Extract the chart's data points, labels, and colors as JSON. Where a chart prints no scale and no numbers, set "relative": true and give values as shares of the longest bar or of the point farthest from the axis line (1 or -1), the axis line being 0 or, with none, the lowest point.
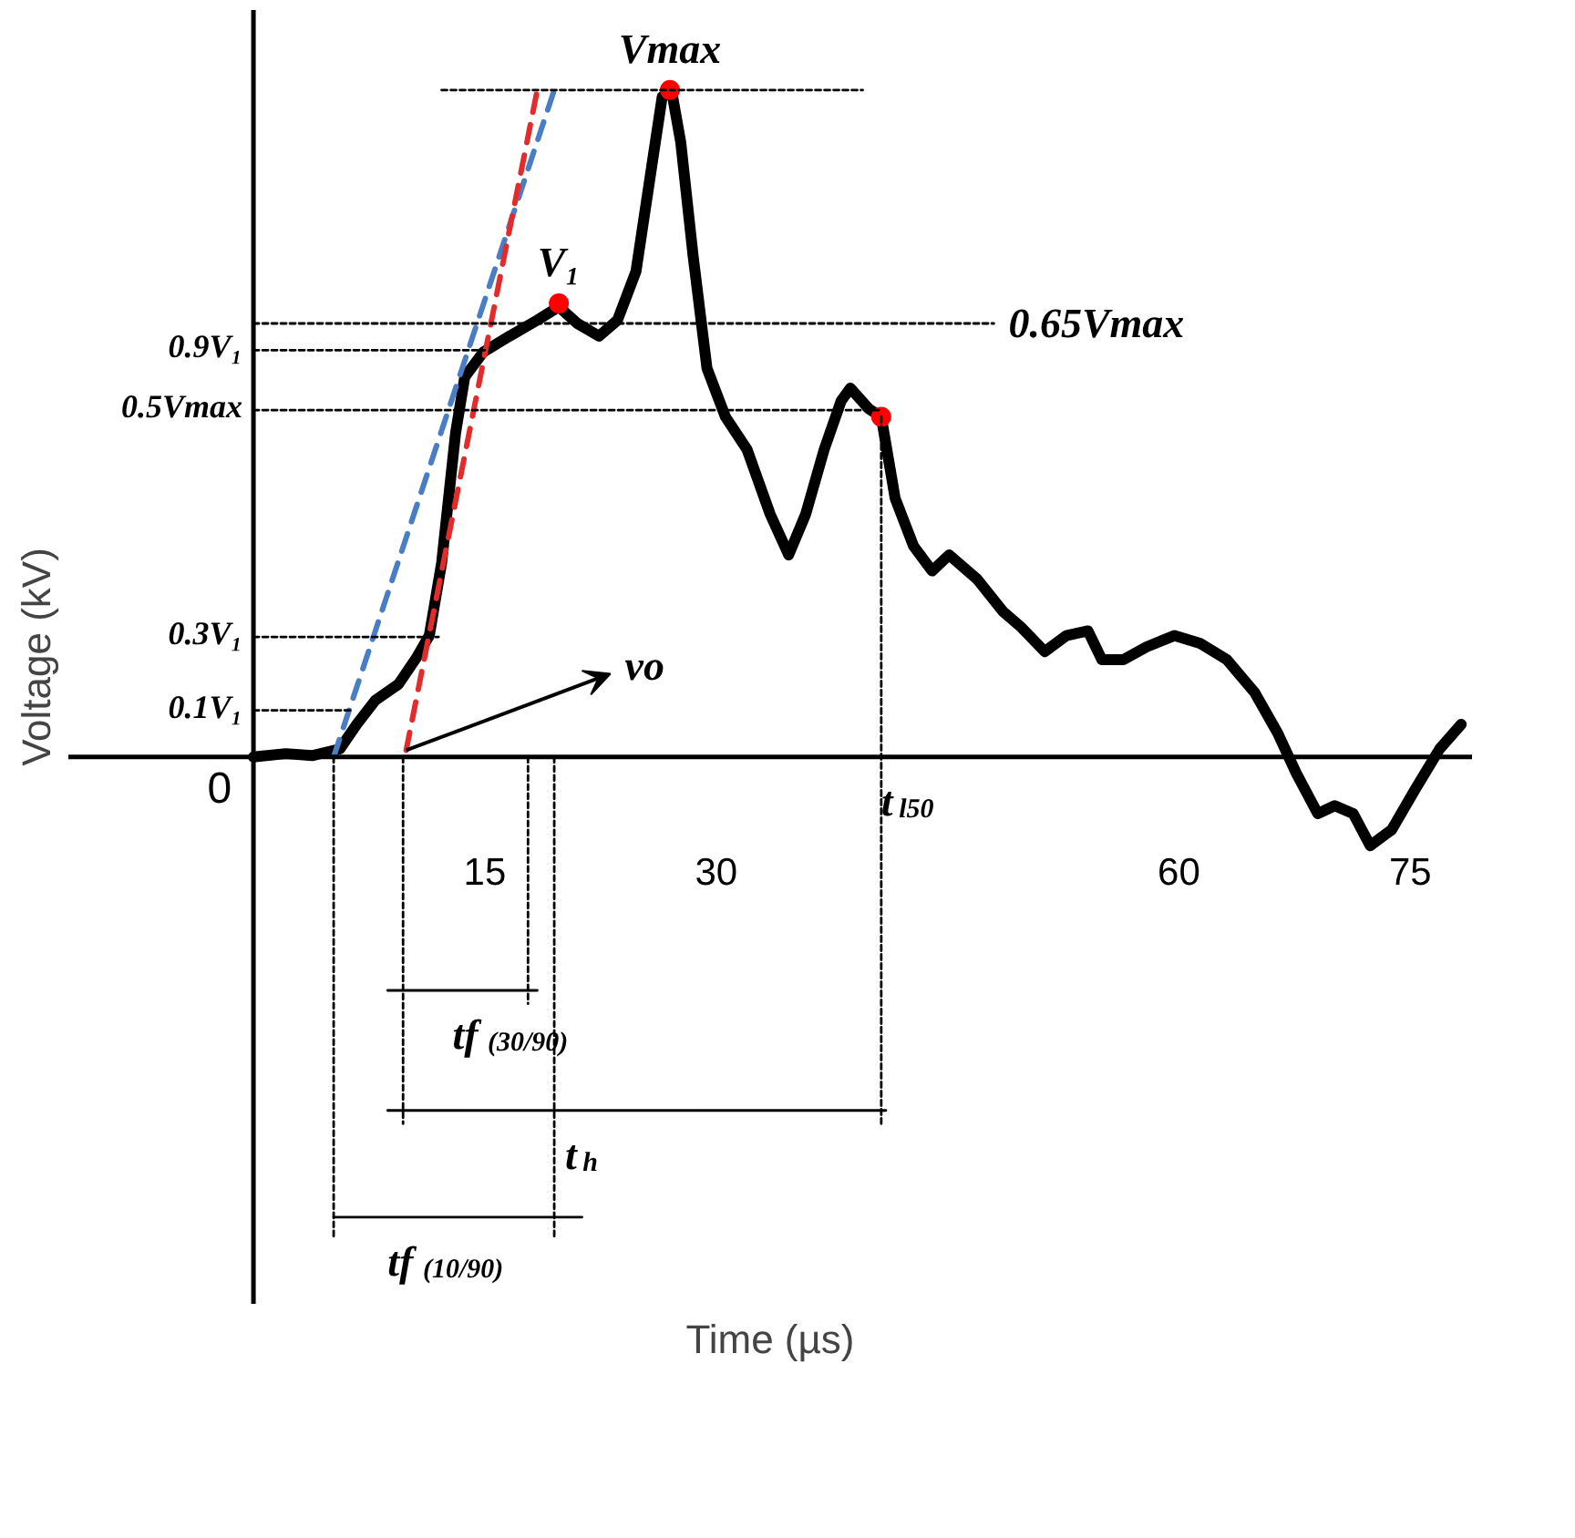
{
  "chart_data": {
    "type": "line",
    "relative": true,
    "xlabel": "Time (µs)",
    "ylabel": "Voltage (kV)",
    "xlim": [
      -12,
      79
    ],
    "xticks": [
      15,
      30,
      60,
      75
    ],
    "tick_labels": "x",
    "ref_lines": [
      {
        "axis": "y",
        "value": 0,
        "label": "0",
        "color": "#000000"
      },
      {
        "axis": "x",
        "value": 0,
        "color": "#000000"
      }
    ],
    "series": [
      {
        "color": "#000000",
        "line_style": "solid",
        "x": [
          0,
          2.1,
          3.8,
          5.6,
          6.7,
          7.9,
          9.4,
          10.6,
          11.4,
          12.2,
          13.1,
          13.7,
          14.9,
          16.6,
          18.4,
          19.8,
          21.0,
          22.4,
          23.6,
          24.8,
          25.9,
          26.5,
          27.1,
          27.7,
          28.5,
          29.4,
          30.6,
          32.0,
          33.5,
          34.7,
          35.8,
          37.0,
          38.1,
          38.7,
          39.9,
          40.7,
          41.6,
          42.8,
          44.0,
          45.1,
          46.9,
          48.6,
          49.8,
          51.3,
          52.7,
          54.1,
          55.0,
          56.4,
          57.9,
          59.7,
          61.4,
          63.1,
          64.9,
          66.4,
          67.6,
          69.0,
          70.1,
          71.3,
          72.4,
          73.8,
          75.3,
          76.9,
          78.3
        ],
        "values": [
          0,
          0.005,
          0.002,
          0.012,
          0.049,
          0.085,
          0.109,
          0.15,
          0.182,
          0.291,
          0.485,
          0.57,
          0.607,
          0.631,
          0.655,
          0.675,
          0.65,
          0.631,
          0.655,
          0.728,
          0.898,
          0.99,
          1.0,
          0.922,
          0.752,
          0.583,
          0.51,
          0.461,
          0.364,
          0.303,
          0.364,
          0.461,
          0.534,
          0.553,
          0.522,
          0.51,
          0.388,
          0.316,
          0.279,
          0.303,
          0.267,
          0.218,
          0.194,
          0.158,
          0.182,
          0.189,
          0.146,
          0.146,
          0.165,
          0.182,
          0.17,
          0.146,
          0.097,
          0.036,
          -0.024,
          -0.085,
          -0.073,
          -0.085,
          -0.133,
          -0.109,
          -0.049,
          0.012,
          0.049
        ]
      },
      {
        "color": "#4a7ec4",
        "line_style": "dashed",
        "x": [
          5.2,
          19.5
        ],
        "values": [
          0.0,
          1.0
        ]
      },
      {
        "color": "#e32b2b",
        "line_style": "dashed",
        "x": [
          9.9,
          18.4
        ],
        "values": [
          0.01,
          1.0
        ]
      },
      {
        "type": "scatter",
        "color": "#ff0000",
        "marker": "circle",
        "x": [
          19.8,
          27.0,
          40.7
        ],
        "values": [
          0.68,
          1.0,
          0.51
        ]
      },
      {
        "color": "#000000",
        "line_style": "dotted",
        "x": [
          12.2,
          39.5
        ],
        "values": [
          1.0,
          1.0
        ]
      },
      {
        "color": "#000000",
        "line_style": "dotted",
        "x": [
          0,
          48
        ],
        "values": [
          0.65,
          0.65
        ]
      },
      {
        "color": "#000000",
        "line_style": "dotted",
        "name": "0.9V₁",
        "x": [
          0,
          15
        ],
        "values": [
          0.61,
          0.61
        ]
      },
      {
        "color": "#000000",
        "line_style": "dotted",
        "name": "0.5Vmax",
        "x": [
          0,
          40.7
        ],
        "values": [
          0.52,
          0.52
        ]
      },
      {
        "color": "#000000",
        "line_style": "dotted",
        "name": "0.3V₁",
        "x": [
          0,
          12
        ],
        "values": [
          0.18,
          0.18
        ]
      },
      {
        "color": "#000000",
        "line_style": "dotted",
        "name": "0.1V₁",
        "x": [
          0,
          6.5
        ],
        "values": [
          0.07,
          0.07
        ]
      },
      {
        "color": "#000000",
        "line_style": "dotted",
        "x": [
          5.2,
          5.2
        ],
        "values": [
          0.0,
          -0.72
        ]
      },
      {
        "color": "#000000",
        "line_style": "dotted",
        "x": [
          9.7,
          9.7
        ],
        "values": [
          0.0,
          -0.55
        ]
      },
      {
        "color": "#000000",
        "line_style": "dotted",
        "x": [
          17.8,
          17.8
        ],
        "values": [
          0.0,
          -0.37
        ]
      },
      {
        "color": "#000000",
        "line_style": "dotted",
        "x": [
          19.5,
          19.5
        ],
        "values": [
          0.0,
          -0.72
        ]
      },
      {
        "color": "#000000",
        "line_style": "dotted",
        "x": [
          40.7,
          40.7
        ],
        "values": [
          0.51,
          -0.55
        ]
      },
      {
        "color": "#000000",
        "line_style": "solid",
        "x": [
          8.7,
          18.4
        ],
        "values": [
          -0.35,
          -0.35
        ]
      },
      {
        "color": "#000000",
        "line_style": "solid",
        "x": [
          8.7,
          41.0
        ],
        "values": [
          -0.53,
          -0.53
        ]
      },
      {
        "color": "#000000",
        "line_style": "solid",
        "x": [
          5.2,
          21.3
        ],
        "values": [
          -0.69,
          -0.69
        ]
      }
    ],
    "annotations": [
      {
        "text": "Vmax",
        "x": 27.0,
        "y": 1.0
      },
      {
        "text": "V₁",
        "x": 19.8,
        "y": 0.68
      },
      {
        "text": "0.65Vmax",
        "x": 48,
        "y": 0.65
      },
      {
        "text": "vo",
        "x": 9.9,
        "y": 0.01
      },
      {
        "text": "t$_{l50}$",
        "x": 40.7,
        "y": 0.0
      },
      {
        "text": "tf$_{(30/90)}$",
        "x": 12.9,
        "y": -0.35
      },
      {
        "text": "t$_{h}$",
        "x": 20.2,
        "y": -0.53
      },
      {
        "text": "tf$_{(10/90)}$",
        "x": 8.7,
        "y": -0.69
      }
    ]
  }
}
